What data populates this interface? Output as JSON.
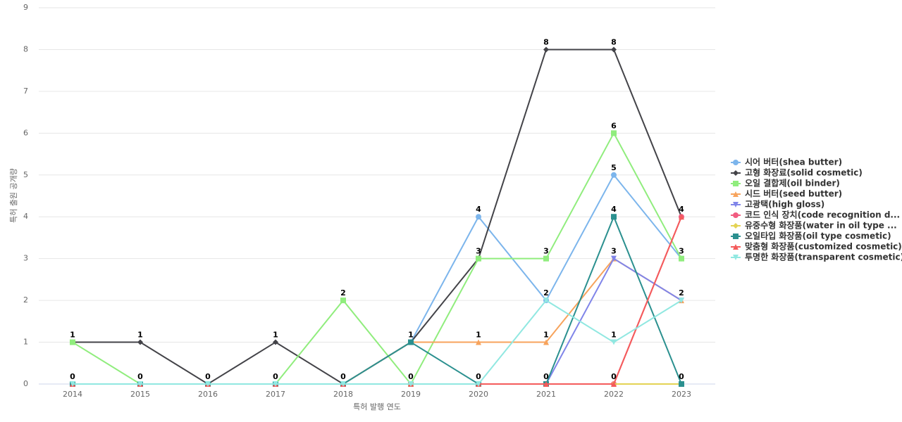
{
  "chart_data": {
    "type": "line",
    "x_label": "특허 발행 연도",
    "y_label": "특허 출원 공개량",
    "categories": [
      "2014",
      "2015",
      "2016",
      "2017",
      "2018",
      "2019",
      "2020",
      "2021",
      "2022",
      "2023"
    ],
    "ylim": [
      0,
      9
    ],
    "yticks": [
      0,
      1,
      2,
      3,
      4,
      5,
      6,
      7,
      8,
      9
    ],
    "grid": true,
    "legend": "right",
    "series": [
      {
        "name": "시어 버터(shea butter)",
        "color": "#7cb5ec",
        "marker": "circle",
        "values": [
          0,
          0,
          0,
          0,
          0,
          1,
          4,
          2,
          5,
          3
        ]
      },
      {
        "name": "고형 화장료(solid cosmetic)",
        "color": "#434348",
        "marker": "diamond",
        "values": [
          1,
          1,
          0,
          1,
          0,
          1,
          3,
          8,
          8,
          4
        ]
      },
      {
        "name": "오일 결합제(oil binder)",
        "color": "#90ed7d",
        "marker": "square",
        "values": [
          1,
          0,
          0,
          0,
          2,
          0,
          3,
          3,
          6,
          3
        ]
      },
      {
        "name": "시드 버터(seed butter)",
        "color": "#f7a35c",
        "marker": "triangle",
        "values": [
          0,
          0,
          0,
          0,
          0,
          1,
          1,
          1,
          3,
          2
        ]
      },
      {
        "name": "고광택(high gloss)",
        "color": "#8085e9",
        "marker": "triangle-down",
        "values": [
          0,
          0,
          0,
          0,
          0,
          0,
          0,
          0,
          3,
          2
        ]
      },
      {
        "name": "코드 인식 장치(code recognition d...",
        "color": "#f15c80",
        "marker": "circle",
        "values": [
          0,
          0,
          0,
          0,
          0,
          0,
          0,
          0,
          0,
          4
        ]
      },
      {
        "name": "유중수형 화장품(water in oil type ...",
        "color": "#e4d354",
        "marker": "diamond",
        "values": [
          0,
          0,
          0,
          0,
          0,
          0,
          0,
          0,
          0,
          0
        ]
      },
      {
        "name": "오일타입 화장품(oil type cosmetic)",
        "color": "#2b908f",
        "marker": "square",
        "values": [
          0,
          0,
          0,
          0,
          0,
          1,
          0,
          0,
          4,
          0
        ]
      },
      {
        "name": "맞춤형 화장품(customized cosmetic)",
        "color": "#f45b5b",
        "marker": "triangle",
        "values": [
          0,
          0,
          0,
          0,
          0,
          0,
          0,
          0,
          0,
          4
        ]
      },
      {
        "name": "투명한 화장품(transparent cosmetic)",
        "color": "#91e8e1",
        "marker": "triangle-down",
        "values": [
          0,
          0,
          0,
          0,
          0,
          0,
          0,
          2,
          1,
          2
        ]
      }
    ]
  }
}
